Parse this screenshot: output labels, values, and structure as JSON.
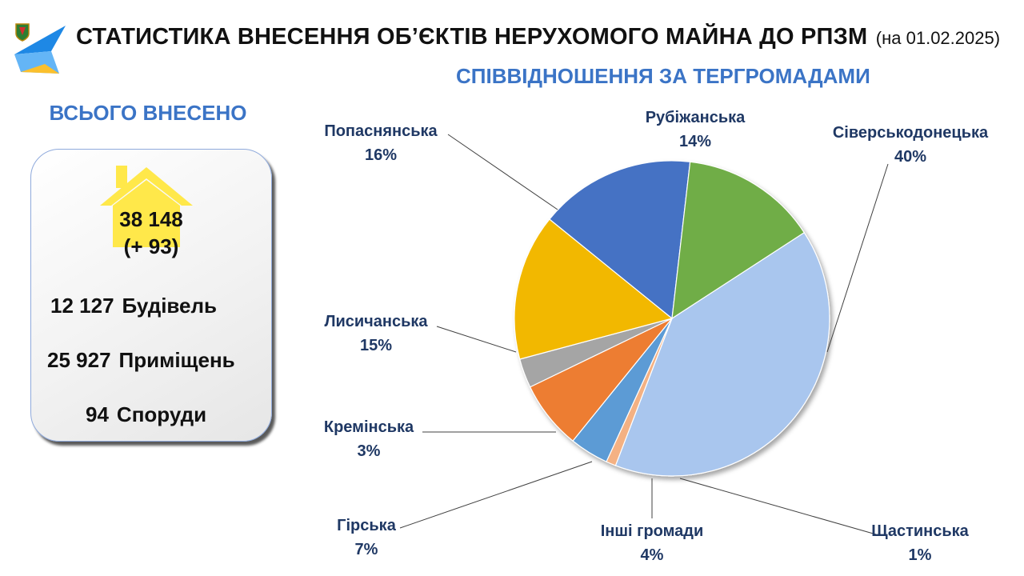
{
  "header": {
    "title": "СТАТИСТИКА ВНЕСЕННЯ ОБ’ЄКТІВ НЕРУХОМОГО МАЙНА ДО РПЗМ",
    "date_note": "(на 01.02.2025)",
    "logo_icon": "coat-of-arms-logo-icon"
  },
  "summary": {
    "heading": "ВСЬОГО ВНЕСЕНО",
    "total": "38 148",
    "delta": "(+ 93)",
    "house_icon": "house-icon",
    "items": [
      {
        "value": "12 127",
        "label": "Будівель"
      },
      {
        "value": "25 927",
        "label": "Приміщень"
      },
      {
        "value": "94",
        "label": "Споруди"
      }
    ]
  },
  "chart_data": {
    "type": "pie",
    "title": "СПІВВІДНОШЕННЯ ЗА ТЕРГРОМАДАМИ",
    "unit": "%",
    "slices": [
      {
        "name": "Сіверськодонецька",
        "value": 40,
        "label": "40%",
        "color": "#a9c6ee"
      },
      {
        "name": "Щастинська",
        "value": 1,
        "label": "1%",
        "color": "#f4b183"
      },
      {
        "name": "Інші громади",
        "value": 4,
        "label": "4%",
        "color": "#5b9bd5"
      },
      {
        "name": "Гірська",
        "value": 7,
        "label": "7%",
        "color": "#ed7d31"
      },
      {
        "name": "Кремінська",
        "value": 3,
        "label": "3%",
        "color": "#a5a5a5"
      },
      {
        "name": "Лисичанська",
        "value": 15,
        "label": "15%",
        "color": "#f2b800"
      },
      {
        "name": "Попаснянська",
        "value": 16,
        "label": "16%",
        "color": "#4472c4"
      },
      {
        "name": "Рубіжанська",
        "value": 14,
        "label": "14%",
        "color": "#70ad47"
      }
    ]
  }
}
